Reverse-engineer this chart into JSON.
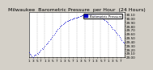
{
  "title": "Milwaukee  Barometric Pressure  per Hour  (24 Hours)",
  "ylim": [
    29.0,
    30.15
  ],
  "xlim": [
    0,
    96
  ],
  "background_color": "#d4d0c8",
  "plot_bg_color": "#ffffff",
  "dot_color": "#0000cc",
  "grid_color": "#888888",
  "pressure": [
    29.12,
    29.08,
    29.05,
    29.02,
    29.0,
    29.03,
    29.07,
    29.05,
    29.1,
    29.08,
    29.12,
    29.15,
    29.18,
    29.22,
    29.2,
    29.25,
    29.28,
    29.32,
    29.35,
    29.38,
    29.42,
    29.45,
    29.48,
    29.52,
    29.55,
    29.58,
    29.62,
    29.65,
    29.68,
    29.72,
    29.75,
    29.78,
    29.8,
    29.83,
    29.85,
    29.87,
    29.88,
    29.9,
    29.92,
    29.93,
    29.94,
    29.95,
    29.96,
    29.97,
    29.98,
    29.99,
    30.0,
    30.01,
    30.02,
    30.03,
    30.04,
    30.05,
    30.06,
    30.07,
    30.07,
    30.08,
    30.08,
    30.09,
    30.09,
    30.09,
    30.1,
    30.1,
    30.1,
    30.09,
    30.09,
    30.08,
    30.08,
    30.07,
    30.06,
    30.05,
    30.04,
    30.03,
    30.02,
    30.0,
    29.98,
    29.96,
    29.94,
    29.92,
    29.9,
    29.88,
    29.85,
    29.82,
    29.79,
    29.76,
    29.73,
    29.7,
    29.67,
    29.64,
    29.61,
    29.58,
    29.55,
    29.52,
    29.48,
    29.44,
    29.4,
    29.36
  ],
  "legend_label": "Barometric Pressure",
  "title_fontsize": 4.5,
  "tick_fontsize": 3.0,
  "legend_color": "#0000cc",
  "yticks": [
    29.0,
    29.1,
    29.2,
    29.3,
    29.4,
    29.5,
    29.6,
    29.7,
    29.8,
    29.9,
    30.0,
    30.1
  ],
  "grid_positions": [
    8,
    16,
    24,
    32,
    40,
    48,
    56,
    64,
    72,
    80,
    88,
    96
  ]
}
